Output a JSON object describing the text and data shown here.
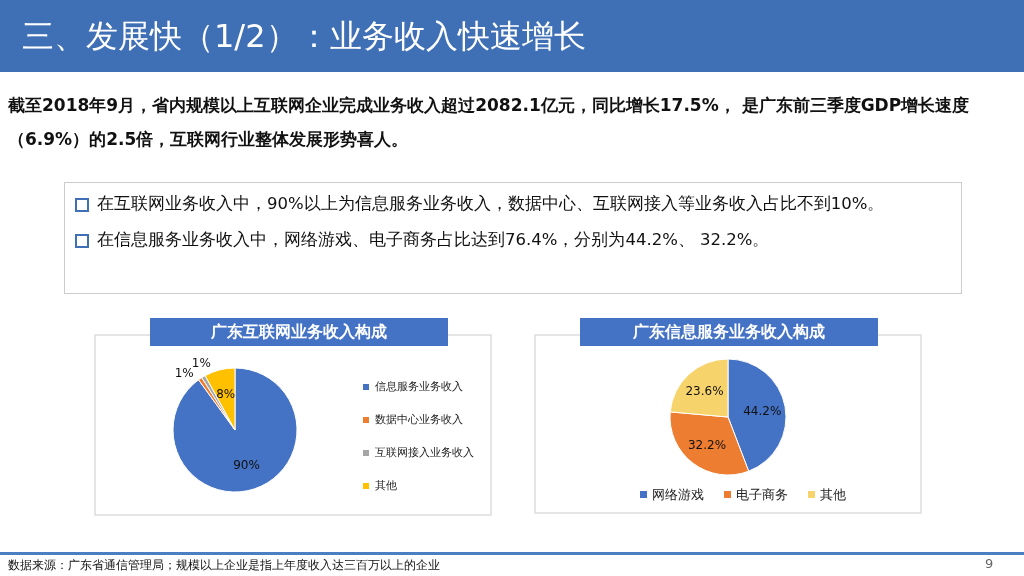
{
  "chart_data": [
    {
      "type": "other",
      "title": "三、发展快（1/2）：业务收入快速增长",
      "annotations": [
        "截至2018年9月，省内规模以上互联网企业完成业务收入超过2082.1亿元，同比增长17.5%， 是广东前三季度GDP增长速度（6.9%）的2.5倍，互联网行业整体发展形势喜人。",
        "在互联网业务收入中，90%以上为信息服务业务收入，数据中心、互联网接入等业务收入占比不到10%。",
        "在信息服务业务收入中，网络游戏、电子商务占比达到76.4%，分别为44.2%、 32.2%。",
        "数据来源：广东省通信管理局；规模以上企业是指上年度收入达三百万以上的企业",
        "9"
      ]
    },
    {
      "type": "pie",
      "title": "广东互联网业务收入构成",
      "categories": [
        "信息服务业务收入",
        "数据中心业务收入",
        "互联网接入业务收入",
        "其他"
      ],
      "values": [
        90,
        1,
        1,
        8
      ],
      "colors": [
        "#4472c4",
        "#ed7d31",
        "#a5a5a5",
        "#ffc000"
      ],
      "value_labels": [
        "90%",
        "1%",
        "1%",
        "8%"
      ],
      "legend": "right"
    },
    {
      "type": "pie",
      "title": "广东信息服务业务收入构成",
      "categories": [
        "网络游戏",
        "电子商务",
        "其他"
      ],
      "values": [
        44.2,
        32.2,
        23.6
      ],
      "colors": [
        "#4472c4",
        "#ed7d31",
        "#f7d46b"
      ],
      "value_labels": [
        "44.2%",
        "32.2%",
        "23.6%"
      ],
      "legend": "bottom"
    }
  ]
}
